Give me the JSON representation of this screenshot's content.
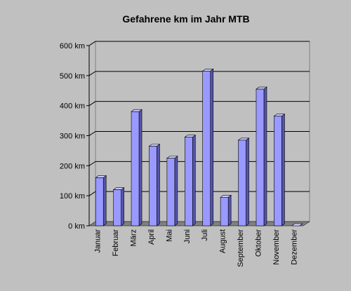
{
  "chart_data": {
    "type": "bar",
    "title": "Gefahrene km im Jahr MTB",
    "xlabel": "",
    "ylabel": "",
    "categories": [
      "Januar",
      "Februar",
      "März",
      "April",
      "Mai",
      "Juni",
      "Juli",
      "August",
      "September",
      "Oktober",
      "November",
      "Dezember"
    ],
    "values": [
      160,
      120,
      380,
      265,
      225,
      295,
      515,
      95,
      285,
      455,
      365,
      0
    ],
    "ylim": [
      0,
      600
    ],
    "yticks": [
      0,
      100,
      200,
      300,
      400,
      500,
      600
    ],
    "ytick_labels": [
      "0 km",
      "100 km",
      "200 km",
      "300 km",
      "400 km",
      "500 km",
      "600 km"
    ],
    "grid": true,
    "style": "3d-bar",
    "colors": {
      "background": "#c0c0c0",
      "plot_back": "#c0c0c0",
      "floor": "#808080",
      "bar_front": "#9999ff",
      "bar_side": "#5555aa",
      "bar_top": "#ccccff",
      "bar_edge": "#000000",
      "grid": "#000000"
    }
  }
}
